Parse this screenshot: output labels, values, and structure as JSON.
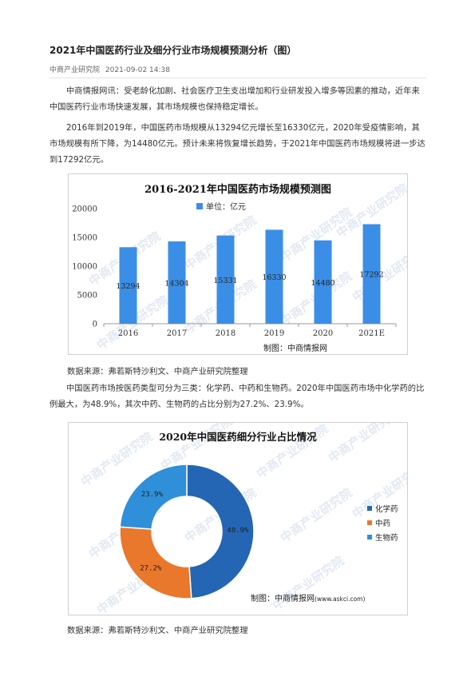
{
  "article": {
    "title": "2021年中国医药行业及细分行业市场规模预测分析（图）",
    "source_name": "中商产业研究院",
    "datetime": "2021-09-02 14:38",
    "paragraphs": [
      "中商情报网讯：受老龄化加剧、社会医疗卫生支出增加和行业研发投入增多等因素的推动，近年来中国医药行业市场快速发展，其市场规模也保持稳定增长。",
      "2016年到2019年，中国医药市场规模从13294亿元增长至16330亿元，2020年受疫情影响，其市场规模有所下降，为14480亿元。预计未来将恢复增长趋势，于2021年中国医药市场规模将进一步达到17292亿元。",
      "中国医药市场按医药类型可分为三类：化学药、中药和生物药。2020年中国医药市场中化学药的比例最大，为48.9%，其次中药、生物药的占比分别为27.2%、23.9%。"
    ],
    "data_source_1": "数据来源：弗若斯特沙利文、中商产业研究院整理",
    "data_source_2": "数据来源：弗若斯特沙利文、中商产业研究院整理"
  },
  "watermark": "中商产业研究院",
  "chart_data": [
    {
      "type": "bar",
      "title": "2016-2021年中国医药市场规模预测图",
      "legend": "单位：亿元",
      "legend_position": "top-center",
      "categories": [
        "2016",
        "2017",
        "2018",
        "2019",
        "2020",
        "2021E"
      ],
      "series": [
        {
          "name": "单位：亿元",
          "values": [
            13294,
            14304,
            15331,
            16330,
            14480,
            17292
          ]
        }
      ],
      "data_labels": [
        "13294",
        "14304",
        "15331",
        "16330",
        "14480",
        "17292"
      ],
      "ylim": [
        0,
        20000
      ],
      "yticks": [
        "0",
        "5000",
        "10000",
        "15000",
        "20000"
      ],
      "grid": false,
      "credit": "制图：中商情报网",
      "color": "#3a8ee6"
    },
    {
      "type": "pie",
      "title": "2020年中国医药细分行业占比情况",
      "legend_position": "right",
      "categories": [
        "化学药",
        "中药",
        "生物药"
      ],
      "values": [
        48.9,
        27.2,
        23.9
      ],
      "data_labels": [
        "48.9%",
        "27.2%",
        "23.9%"
      ],
      "colors": [
        "#2466b3",
        "#e9772c",
        "#2f8fd9"
      ],
      "credit": "制图：中商情报网",
      "credit_url": "(www.askci.com)"
    }
  ]
}
